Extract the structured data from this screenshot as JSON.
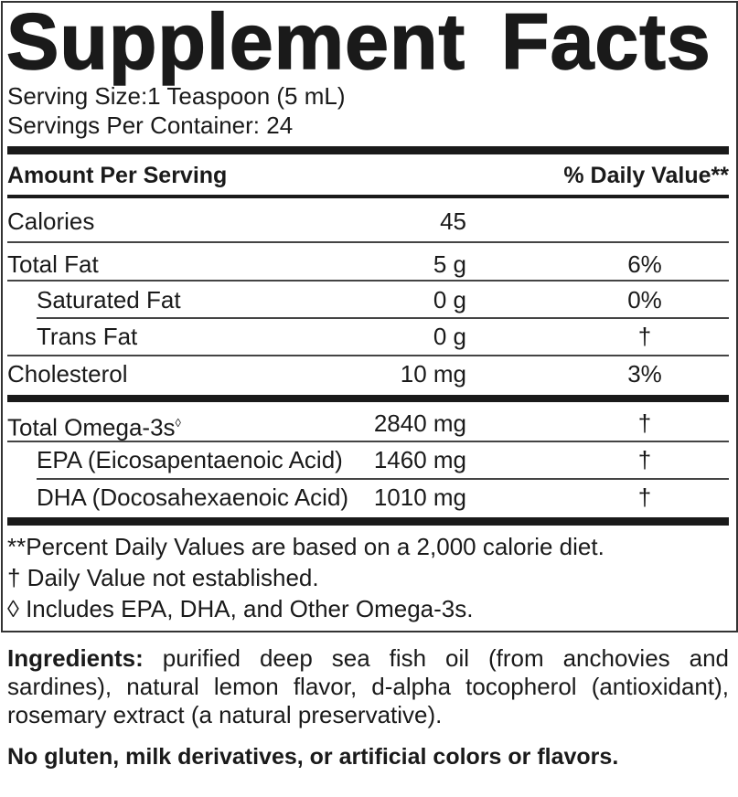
{
  "title": "Supplement Facts",
  "serving_size": "Serving Size:1 Teaspoon (5 mL)",
  "servings_per_container": "Servings Per Container: 24",
  "header": {
    "amount": "Amount Per Serving",
    "dv": "% Daily Value**"
  },
  "rows": [
    {
      "label": "Calories",
      "amount": "45",
      "dv": ""
    },
    {
      "label": "Total Fat",
      "amount": "5 g",
      "dv": "6%"
    },
    {
      "label": "Saturated Fat",
      "amount": "0 g",
      "dv": "0%"
    },
    {
      "label": "Trans Fat",
      "amount": "0 g",
      "dv": "†"
    },
    {
      "label": "Cholesterol",
      "amount": "10 mg",
      "dv": "3%"
    }
  ],
  "omega_rows": [
    {
      "label": "Total Omega-3s",
      "mark": "◊",
      "amount": "2840 mg",
      "dv": "†"
    },
    {
      "label": "EPA (Eicosapentaenoic Acid)",
      "amount": "1460 mg",
      "dv": "†"
    },
    {
      "label": "DHA (Docosahexaenoic Acid)",
      "amount": "1010 mg",
      "dv": "†"
    }
  ],
  "footnotes": [
    "**Percent Daily Values are based on a 2,000 calorie diet.",
    "† Daily Value not established.",
    "◊ Includes EPA, DHA, and Other Omega-3s."
  ],
  "ingredients": {
    "label": "Ingredients:",
    "text": " purified deep sea fish oil (from anchovies and sardines), natural lemon flavor, d-alpha tocopherol (antioxidant), rosemary extract (a natural preservative)."
  },
  "allergen_statement": "No gluten, milk derivatives, or artificial colors or flavors."
}
